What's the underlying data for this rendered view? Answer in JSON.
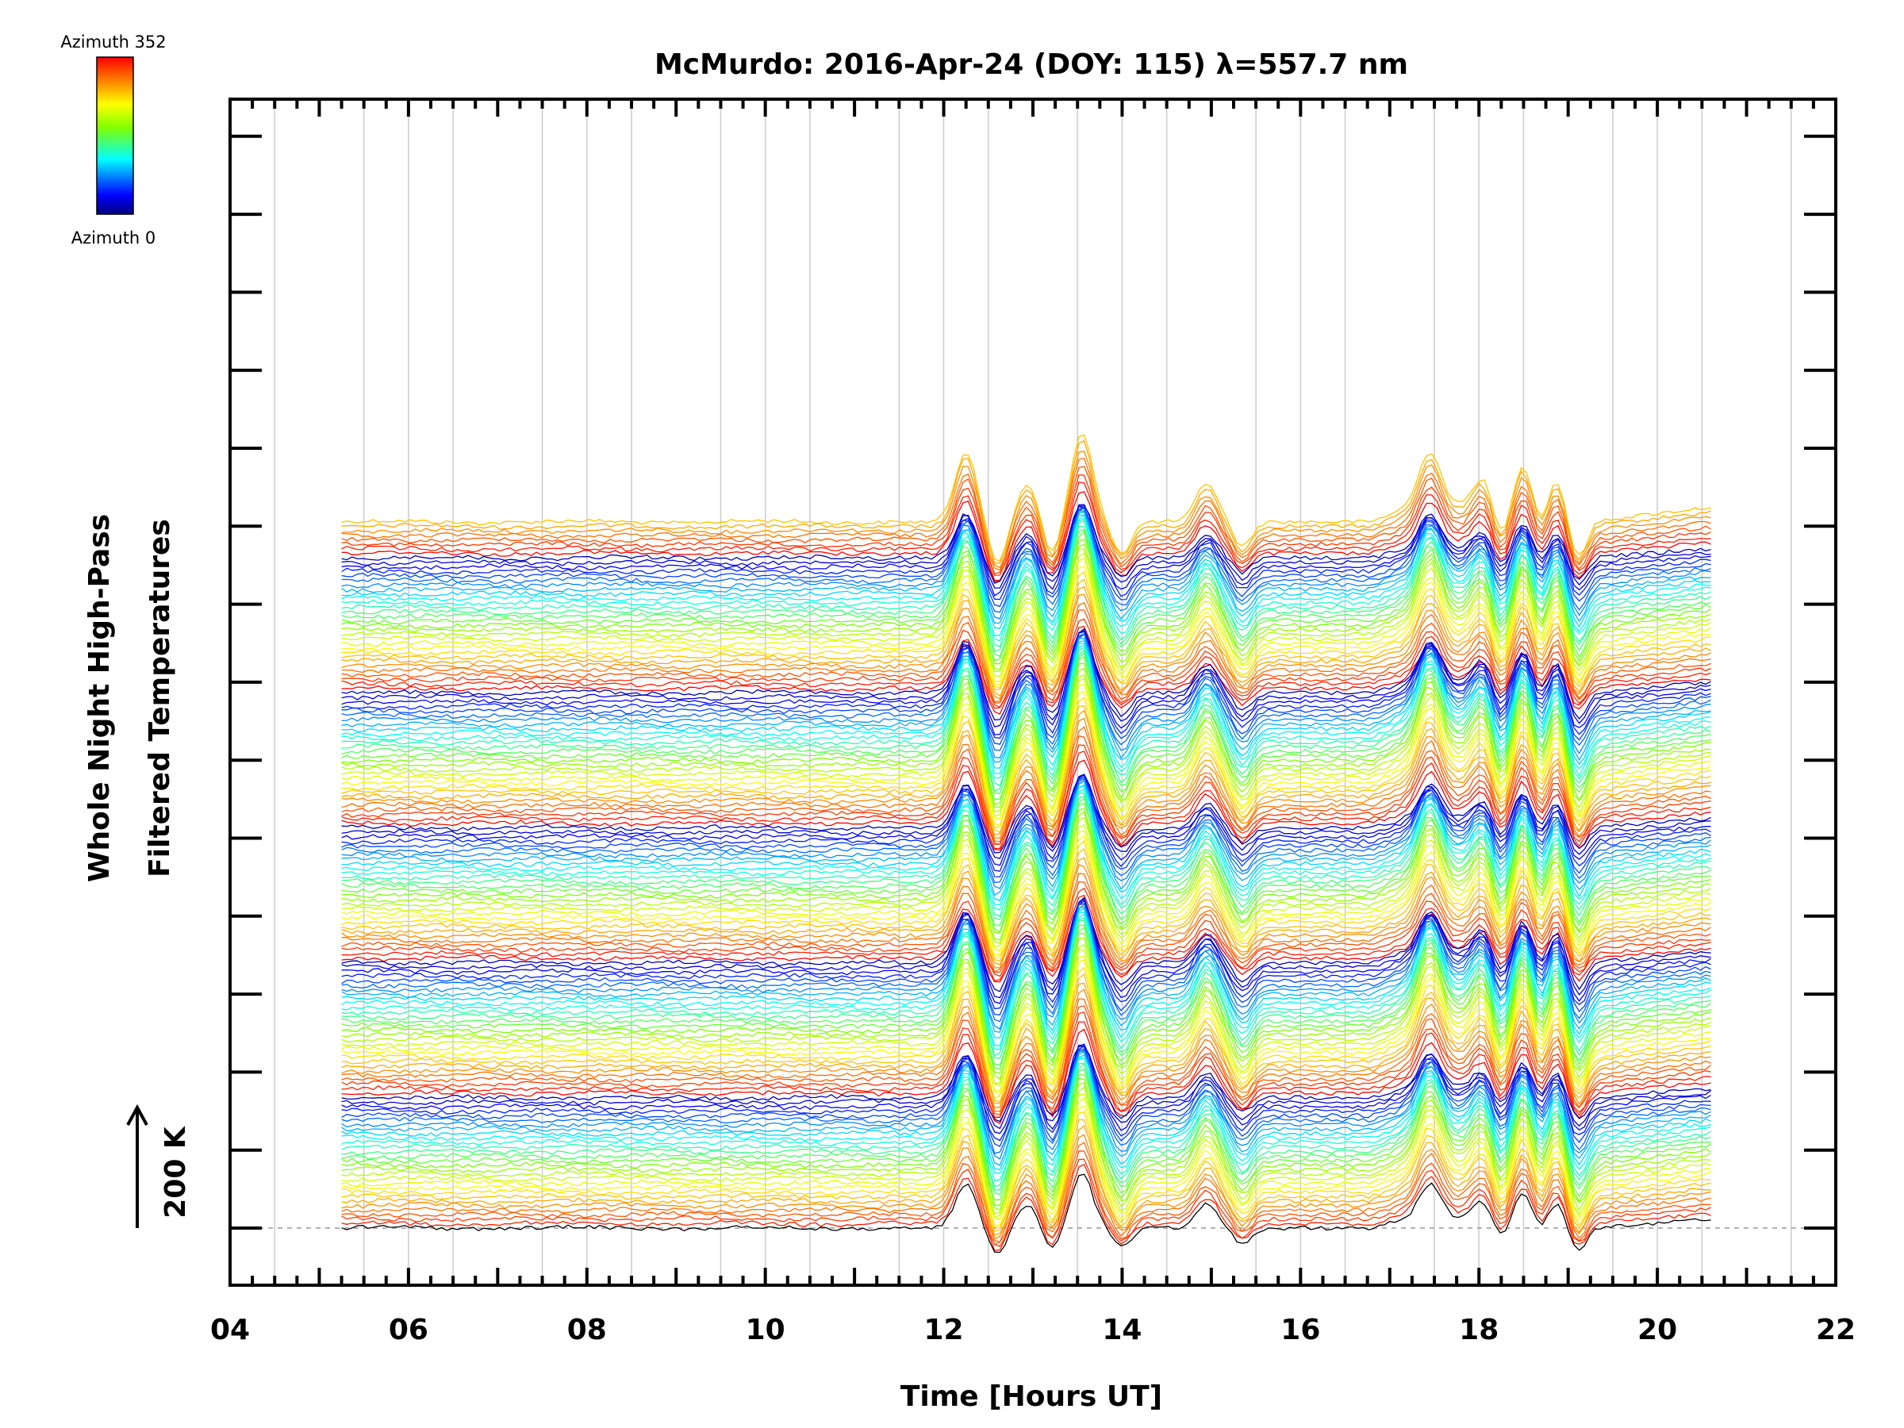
{
  "chart_data": {
    "type": "line",
    "title": "McMurdo: 2016-Apr-24 (DOY: 115) λ=557.7 nm",
    "xlabel": "Time [Hours UT]",
    "ylabel_line1": "Whole Night High-Pass",
    "ylabel_line2": "Filtered Temperatures",
    "xlim": [
      4,
      22
    ],
    "x_ticks": [
      "04",
      "06",
      "08",
      "10",
      "12",
      "14",
      "16",
      "18",
      "20",
      "22"
    ],
    "x_tick_values": [
      4,
      6,
      8,
      10,
      12,
      14,
      16,
      18,
      20,
      22
    ],
    "data_time_range": [
      5.25,
      20.6
    ],
    "scale_bar_label": "200 K",
    "colorbar": {
      "top_label": "Azimuth  352",
      "bottom_label": "Azimuth  0",
      "min": 0,
      "max": 352
    },
    "stack": {
      "groups": 5,
      "traces_per_group": 30,
      "extra_bottom_traces": 8,
      "azimuth_step_deg": 12
    },
    "event_peaks_hours_ut": [
      12.25,
      12.95,
      13.55,
      14.95,
      17.45,
      18.05,
      18.5,
      18.85
    ],
    "event_troughs_hours_ut": [
      12.6,
      13.2,
      14.0,
      15.35,
      18.25,
      18.7,
      19.1
    ]
  },
  "colors": {
    "frame": "#000000",
    "gridlines": "#cccccc",
    "baseline": "#999999",
    "colormap": [
      "#000080",
      "#0000ff",
      "#00ffff",
      "#7fff00",
      "#ffff00",
      "#ff8000",
      "#ff0000"
    ]
  }
}
